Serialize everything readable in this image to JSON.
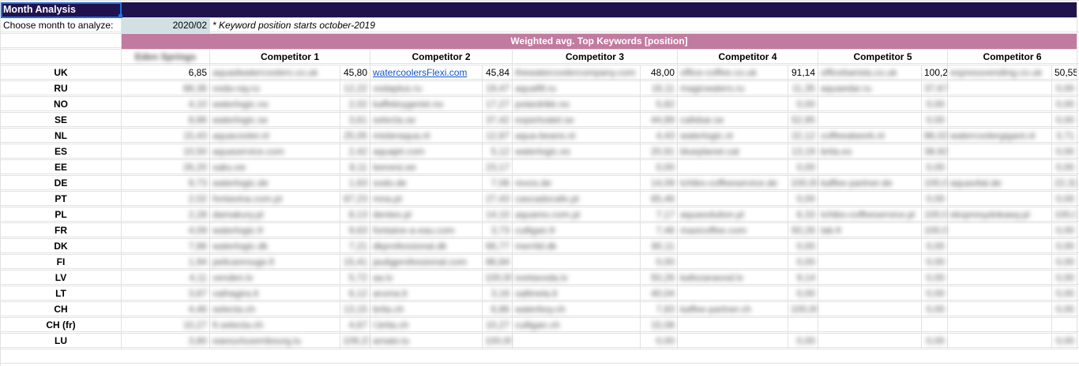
{
  "title": "Month Analysis",
  "choose_label": "Choose month to analyze:",
  "month_value": "2020/02",
  "note": "* Keyword position starts october-2019",
  "banner": "Weighted avg. Top Keywords [position]",
  "own_header": "Eden Springs",
  "competitors": [
    "Competitor 1",
    "Competitor 2",
    "Competitor 3",
    "Competitor 4",
    "Competitor 5",
    "Competitor 6"
  ],
  "rows": [
    {
      "country": "UK",
      "own": "6,85",
      "c": [
        [
          "aquadwatercoolers.co.uk",
          "45,80"
        ],
        [
          "watercoolersFlexi.com",
          "45,84"
        ],
        [
          "thewatercoolercompany.com",
          "48,00"
        ],
        [
          "office-coffee.co.uk",
          "91,14"
        ],
        [
          "officebarista.co.uk",
          "100,2"
        ],
        [
          "espressvending.co.uk",
          "50,55"
        ]
      ]
    },
    {
      "country": "RU",
      "own": "88,36",
      "c": [
        [
          "voda-ray.ru",
          "12,22"
        ],
        [
          "vodaplus.ru",
          "19,47"
        ],
        [
          "aquafill.ru",
          "16,11"
        ],
        [
          "magicwaters.ru",
          "11,35"
        ],
        [
          "aquaedar.ru",
          "37,67"
        ],
        [
          "",
          "0,00"
        ]
      ]
    },
    {
      "country": "NO",
      "own": "4,10",
      "c": [
        [
          "waterlogic.no",
          "2,02"
        ],
        [
          "kaffebrygeriet.no",
          "17,27"
        ],
        [
          "polardrikk.no",
          "5,82"
        ],
        [
          "",
          "0,00"
        ],
        [
          "",
          "0,00"
        ],
        [
          "",
          "0,00"
        ]
      ]
    },
    {
      "country": "SE",
      "own": "8,86",
      "c": [
        [
          "waterlogic.se",
          "3,61"
        ],
        [
          "selecta.se",
          "37,42"
        ],
        [
          "expertvatel.se",
          "44,89"
        ],
        [
          "cafebar.se",
          "52,95"
        ],
        [
          "",
          "0,00"
        ],
        [
          "",
          "0,00"
        ]
      ]
    },
    {
      "country": "NL",
      "own": "15,43",
      "c": [
        [
          "aquacooler.nl",
          "25,05"
        ],
        [
          "misteraqua.nl",
          "12,87"
        ],
        [
          "aqua-beans.nl",
          "4,43"
        ],
        [
          "waterlogic.nl",
          "22,12"
        ],
        [
          "coffeeatwork.nl",
          "86,02"
        ],
        [
          "watercoolergigant.nl",
          "3,71"
        ]
      ]
    },
    {
      "country": "ES",
      "own": "10,50",
      "c": [
        [
          "aquaservice.com",
          "2,42"
        ],
        [
          "aquajet.com",
          "5,12"
        ],
        [
          "waterlogic.es",
          "20,91"
        ],
        [
          "blueplanet.cat",
          "13,19"
        ],
        [
          "brita.es",
          "38,92"
        ],
        [
          "",
          "0,00"
        ]
      ]
    },
    {
      "country": "EE",
      "own": "26,20",
      "c": [
        [
          "saku.ee",
          "8,11"
        ],
        [
          "teevesi.ee",
          "23,17"
        ],
        [
          "",
          "0,00"
        ],
        [
          "",
          "0,00"
        ],
        [
          "",
          "0,00"
        ],
        [
          "",
          "0,00"
        ]
      ]
    },
    {
      "country": "DE",
      "own": "9,73",
      "c": [
        [
          "waterlogic.de",
          "1,63"
        ],
        [
          "sodo.de",
          "7,06"
        ],
        [
          "revos.de",
          "14,09"
        ],
        [
          "tchibo-coffeeservice.de",
          "100,00"
        ],
        [
          "kaffee-partner.de",
          "100,0"
        ],
        [
          "aquavital.de",
          "22,32"
        ]
      ]
    },
    {
      "country": "PT",
      "own": "2,02",
      "c": [
        [
          "fontavina.com.pt",
          "87,23"
        ],
        [
          "mna.pt",
          "27,43"
        ],
        [
          "cascadocafe.pt",
          "65,46"
        ],
        [
          "",
          "0,00"
        ],
        [
          "",
          "0,00"
        ],
        [
          "",
          "0,00"
        ]
      ]
    },
    {
      "country": "PL",
      "own": "2,28",
      "c": [
        [
          "damakury.pl",
          "8,13"
        ],
        [
          "dentes.pl",
          "14,10"
        ],
        [
          "aquamo.com.pl",
          "7,17"
        ],
        [
          "aquasolution.pl",
          "6,33"
        ],
        [
          "tchibo-coffeeservice.pl",
          "100,0"
        ],
        [
          "ekspresydokawy.pl",
          "100,0"
        ]
      ]
    },
    {
      "country": "FR",
      "own": "4,09",
      "c": [
        [
          "waterlogic.fr",
          "9,63"
        ],
        [
          "fontaine-a-eau.com",
          "3,73"
        ],
        [
          "culligan.fr",
          "7,46"
        ],
        [
          "maxicoffee.com",
          "93,26"
        ],
        [
          "lab.fr",
          "100,0"
        ],
        [
          "",
          "0,00"
        ]
      ]
    },
    {
      "country": "DK",
      "own": "7,86",
      "c": [
        [
          "waterlogic.dk",
          "7,21"
        ],
        [
          "dkprofessional.dk",
          "66,77"
        ],
        [
          "merrild.dk",
          "80,11"
        ],
        [
          "",
          "0,00"
        ],
        [
          "",
          "0,00"
        ],
        [
          "",
          "0,00"
        ]
      ]
    },
    {
      "country": "FI",
      "own": "1,94",
      "c": [
        [
          "pelicanrouge.fi",
          "15,41"
        ],
        [
          "jauligprofessional.com",
          "86,84"
        ],
        [
          "",
          "0,00"
        ],
        [
          "",
          "0,00"
        ],
        [
          "",
          "0,00"
        ],
        [
          "",
          "0,00"
        ]
      ]
    },
    {
      "country": "LV",
      "own": "4,11",
      "c": [
        [
          "venden.lv",
          "5,72"
        ],
        [
          "aa.lv",
          "100,00"
        ],
        [
          "svetavoda.lv",
          "50,26"
        ],
        [
          "kafezanavod.lv",
          "9,14"
        ],
        [
          "",
          "0,00"
        ],
        [
          "",
          "0,00"
        ]
      ]
    },
    {
      "country": "LT",
      "own": "3,87",
      "c": [
        [
          "vaihagira.lt",
          "6,12"
        ],
        [
          "aruma.lt",
          "3,16"
        ],
        [
          "saltinela.lt",
          "40,04"
        ],
        [
          "",
          "0,00"
        ],
        [
          "",
          "0,00"
        ],
        [
          "",
          "0,00"
        ]
      ]
    },
    {
      "country": "CH",
      "own": "4,46",
      "c": [
        [
          "selecta.ch",
          "13,15"
        ],
        [
          "brita.ch",
          "6,86"
        ],
        [
          "waterboy.ch",
          "7,83"
        ],
        [
          "kaffee-partner.ch",
          "100,00"
        ],
        [
          "",
          "0,00"
        ],
        [
          "",
          "0,00"
        ]
      ]
    },
    {
      "country": "CH (fr)",
      "own": "10,27",
      "c": [
        [
          "fr.selecta.ch",
          "4,67"
        ],
        [
          "l.brita.ch",
          "10,27"
        ],
        [
          "culligan.ch",
          "15,08"
        ],
        [
          "",
          "",
          ""
        ],
        [
          "",
          "",
          ""
        ],
        [
          "",
          "",
          ""
        ]
      ]
    },
    {
      "country": "LU",
      "own": "3,80",
      "c": [
        [
          "eaesurluxembourg.lu",
          "109,23"
        ],
        [
          "amato.lu",
          "100,00"
        ],
        [
          "",
          "0,00"
        ],
        [
          "",
          "0,00"
        ],
        [
          "",
          "0,00"
        ],
        [
          "",
          "0,00"
        ]
      ]
    }
  ]
}
